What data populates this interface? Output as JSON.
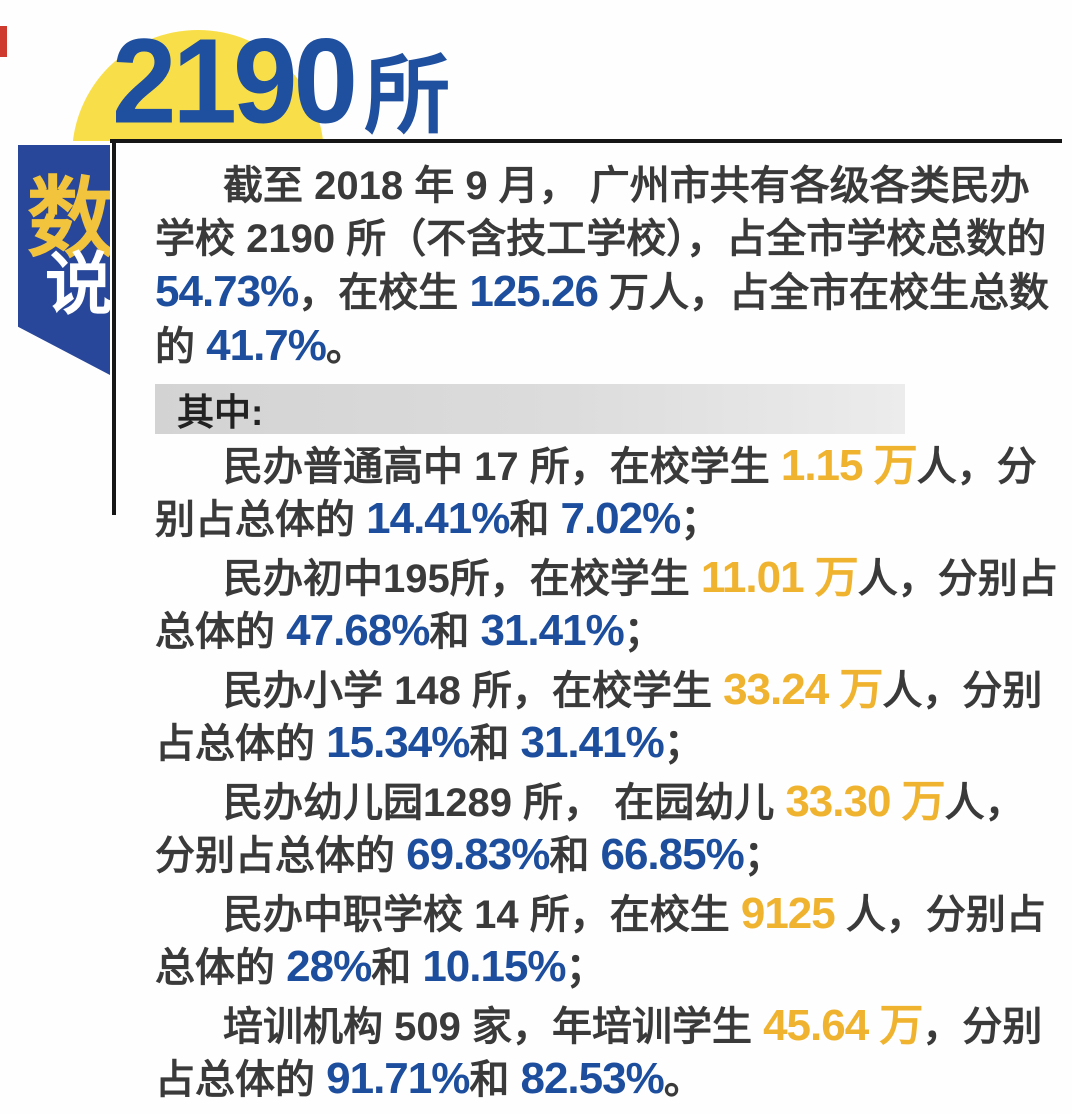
{
  "header": {
    "big_number": "2190",
    "big_unit": "所"
  },
  "ribbon": {
    "char1": "数",
    "char2": "说"
  },
  "intro": {
    "segments": [
      {
        "style": "plain",
        "text": "截至 2018 年 9 月， 广州市共有各级各类民办学校 2190 所（不含技工学校），占全市学校总数的 "
      },
      {
        "style": "blue",
        "text": "54.73%"
      },
      {
        "style": "plain",
        "text": "，在校生 "
      },
      {
        "style": "blue",
        "text": "125.26"
      },
      {
        "style": "plain",
        "text": " 万人，占全市在校生总数的 "
      },
      {
        "style": "blue",
        "text": "41.7%"
      },
      {
        "style": "plain",
        "text": "。"
      }
    ]
  },
  "section": {
    "label": "其中:"
  },
  "items": [
    {
      "segments": [
        {
          "style": "plain",
          "text": "民办普通高中 17 所，在校学生 "
        },
        {
          "style": "gold",
          "text": "1.15 万"
        },
        {
          "style": "plain",
          "text": "人，分别占总体的 "
        },
        {
          "style": "blue",
          "text": "14.41%"
        },
        {
          "style": "plain",
          "text": "和 "
        },
        {
          "style": "blue",
          "text": "7.02%"
        },
        {
          "style": "plain",
          "text": "；"
        }
      ]
    },
    {
      "segments": [
        {
          "style": "plain",
          "text": "民办初中195所，在校学生 "
        },
        {
          "style": "gold",
          "text": "11.01 万"
        },
        {
          "style": "plain",
          "text": "人，分别占总体的 "
        },
        {
          "style": "blue",
          "text": "47.68%"
        },
        {
          "style": "plain",
          "text": "和 "
        },
        {
          "style": "blue",
          "text": "31.41%"
        },
        {
          "style": "plain",
          "text": "；"
        }
      ]
    },
    {
      "segments": [
        {
          "style": "plain",
          "text": "民办小学 148 所，在校学生 "
        },
        {
          "style": "gold",
          "text": "33.24 万"
        },
        {
          "style": "plain",
          "text": "人，分别占总体的 "
        },
        {
          "style": "blue",
          "text": "15.34%"
        },
        {
          "style": "plain",
          "text": "和 "
        },
        {
          "style": "blue",
          "text": "31.41%"
        },
        {
          "style": "plain",
          "text": "；"
        }
      ]
    },
    {
      "segments": [
        {
          "style": "plain",
          "text": "民办幼儿园1289 所， 在园幼儿 "
        },
        {
          "style": "gold",
          "text": "33.30 万"
        },
        {
          "style": "plain",
          "text": "人，分别占总体的 "
        },
        {
          "style": "blue",
          "text": "69.83%"
        },
        {
          "style": "plain",
          "text": "和 "
        },
        {
          "style": "blue",
          "text": "66.85%"
        },
        {
          "style": "plain",
          "text": "；"
        }
      ]
    },
    {
      "segments": [
        {
          "style": "plain",
          "text": "民办中职学校 14 所，在校生 "
        },
        {
          "style": "gold",
          "text": "9125"
        },
        {
          "style": "plain",
          "text": " 人，分别占总体的 "
        },
        {
          "style": "blue",
          "text": "28%"
        },
        {
          "style": "plain",
          "text": "和 "
        },
        {
          "style": "blue",
          "text": "10.15%"
        },
        {
          "style": "plain",
          "text": "；"
        }
      ]
    },
    {
      "segments": [
        {
          "style": "plain",
          "text": "培训机构 509 家，年培训学生 "
        },
        {
          "style": "gold",
          "text": "45.64 万"
        },
        {
          "style": "plain",
          "text": "，分别占总体的 "
        },
        {
          "style": "blue",
          "text": "91.71%"
        },
        {
          "style": "plain",
          "text": "和 "
        },
        {
          "style": "blue",
          "text": "82.53%"
        },
        {
          "style": "plain",
          "text": "。"
        }
      ]
    }
  ],
  "colors": {
    "accent_blue": "#1d4e9e",
    "accent_gold": "#f0b32f",
    "ribbon_navy": "#28479a",
    "circle_yellow": "#f8df4a",
    "section_bar_gray": "#d6d6d6",
    "crop_mark_red": "#cf3a2e",
    "body_text": "#3a3a3a"
  }
}
